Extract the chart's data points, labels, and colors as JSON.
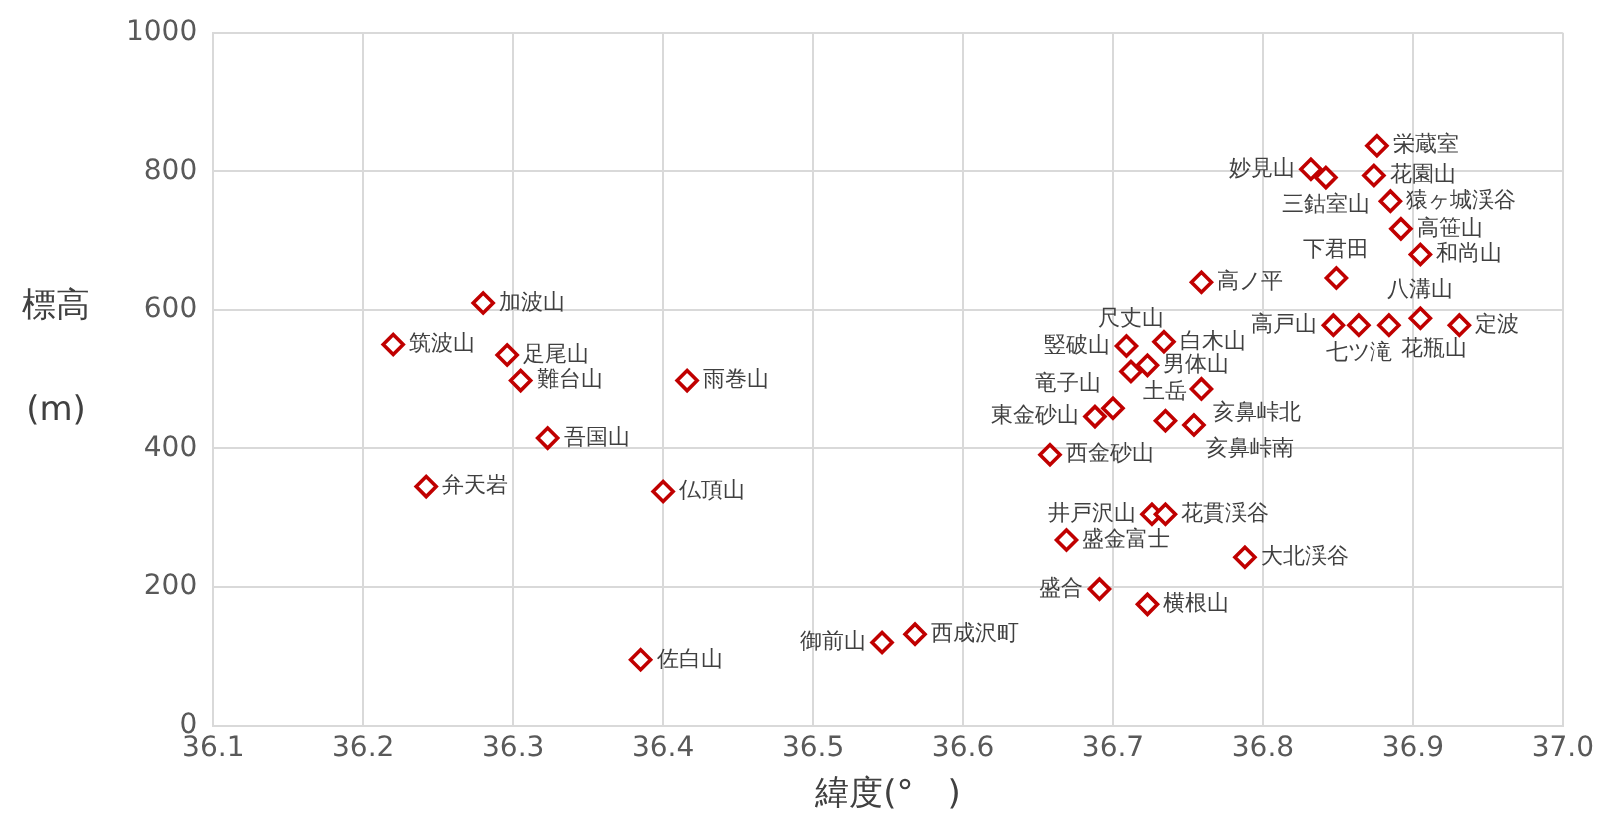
{
  "chart_data": {
    "type": "scatter",
    "xlabel": "緯度(°　)",
    "ylabel": "標高\n(m)",
    "xlim": [
      36.1,
      37.0
    ],
    "xticks": [
      36.1,
      36.2,
      36.3,
      36.4,
      36.5,
      36.6,
      36.7,
      36.8,
      36.9,
      {
        "value": 37.0,
        "label": "37.0"
      }
    ],
    "ylim": [
      0,
      1000
    ],
    "yticks": [
      0,
      200,
      400,
      600,
      800,
      1000
    ],
    "grid": true,
    "legend": false,
    "marker": "diamond",
    "series": [
      {
        "color": "#c00000",
        "x": [
          36.22,
          36.28,
          36.296,
          36.305,
          36.323,
          36.242,
          36.416,
          36.4,
          36.385,
          36.546,
          36.568,
          36.669,
          36.691,
          36.723,
          36.726,
          36.735,
          36.788,
          36.658,
          36.688,
          36.7,
          36.709,
          36.712,
          36.734,
          36.723,
          36.735,
          36.759,
          36.754,
          36.759,
          36.832,
          36.842,
          36.876,
          36.874,
          36.885,
          36.892,
          36.905,
          36.849,
          36.847,
          36.864,
          36.884,
          36.905,
          36.931
        ],
        "values": [
          550,
          610,
          535,
          498,
          415,
          345,
          498,
          338,
          95,
          120,
          132,
          268,
          197,
          175,
          305,
          305,
          243,
          391,
          446,
          458,
          548,
          511,
          554,
          520,
          440,
          486,
          434,
          640,
          803,
          791,
          837,
          794,
          757,
          717,
          680,
          646,
          578,
          578,
          578,
          588,
          578
        ],
        "value_labels": [
          "筑波山",
          "加波山",
          "足尾山",
          "難台山",
          "吾国山",
          "弁天岩",
          "雨巻山",
          "仏頂山",
          "佐白山",
          "御前山",
          "西成沢町",
          "盛金富士",
          "盛合",
          "横根山",
          "井戸沢山",
          "花貫渓谷",
          "大北渓谷",
          "西金砂山",
          "東金砂山",
          "竜子山",
          "竪破山",
          "尺丈山",
          "白木山",
          "男体山",
          "土岳",
          "亥鼻峠北",
          "亥鼻峠南",
          "高ノ平",
          "妙見山",
          "三鈷室山",
          "栄蔵室",
          "花園山",
          "猿ヶ城渓谷",
          "高笹山",
          "和尚山",
          "下君田",
          "高戸山",
          "七ツ滝",
          "花瓶山",
          "八溝山",
          "定波"
        ]
      }
    ]
  }
}
